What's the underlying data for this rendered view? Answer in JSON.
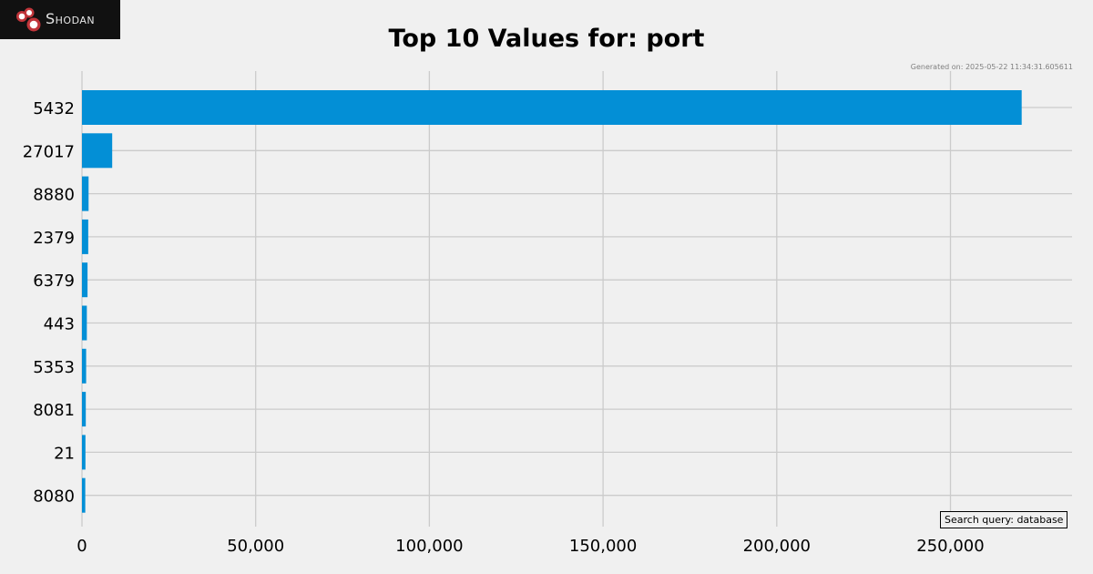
{
  "logo": {
    "text": "Shodan"
  },
  "generated": "Generated on: 2025-05-22 11:34:31.605611",
  "query": "Search query: database",
  "chart_data": {
    "type": "bar",
    "orientation": "horizontal",
    "title": "Top 10 Values for: port",
    "categories": [
      "5432",
      "27017",
      "8880",
      "2379",
      "6379",
      "443",
      "5353",
      "8081",
      "21",
      "8080"
    ],
    "values": [
      270500,
      8700,
      1900,
      1800,
      1600,
      1400,
      1200,
      1100,
      1000,
      950
    ],
    "xlim": [
      0,
      285000
    ],
    "xticks": [
      0,
      50000,
      100000,
      150000,
      200000,
      250000
    ],
    "xtick_labels": [
      "0",
      "50,000",
      "100,000",
      "150,000",
      "200,000",
      "250,000"
    ],
    "bar_color": "#038fd6",
    "grid_color": "#cbcbcb",
    "grid": true
  }
}
